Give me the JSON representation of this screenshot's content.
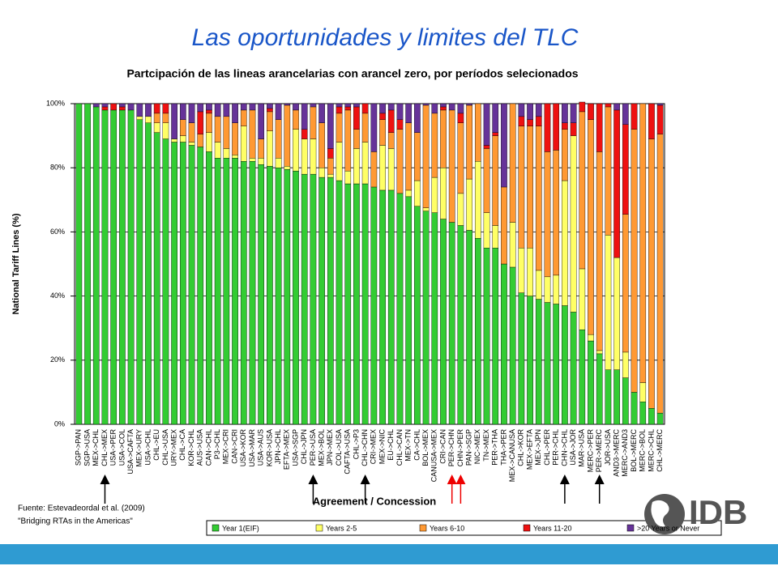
{
  "header": {
    "title": "Las oportunidades y limites del TLC"
  },
  "chart_data": {
    "type": "stacked_bar",
    "title": "Partcipación de las lineas arancelarias con arancel zero, por períodos selecionados",
    "x_label": "Agreement / Concession",
    "y_label": "National Tariff Lines (%)",
    "categories": [
      "SGP->PAN",
      "SGP->USA",
      "MEX->CHL",
      "CHL->MEX",
      "USA->PER",
      "USA->COL",
      "USA->CAFTA",
      "MEX->URY",
      "USA->CHL",
      "CHL->EU",
      "CHL->USA",
      "URY->MEX",
      "CHL->CA",
      "KOR->CHL",
      "AUS->USA",
      "CAN->CHL",
      "P3->CHL",
      "MEX->CRI",
      "CAN->CRI",
      "USA->KOR",
      "USA->MAR",
      "USA->AUS",
      "KOR->USA",
      "JPN->CHL",
      "EFTA->MEX",
      "USA->SGP",
      "CHL->JPN",
      "PER->USA",
      "MEX->BOL",
      "JPN->MEX",
      "COL->USA",
      "CAFTA->USA",
      "CHL->P3",
      "CHL->CHN",
      "CRI->MEX",
      "MEX->NIC",
      "EU->CHL",
      "CHL->CAN",
      "MEX->TN",
      "CA->CHL",
      "BOL->MEX",
      "CANUSA->MEX",
      "CRI->CAN",
      "PER->CHN",
      "CHN->PER",
      "PAN->SGP",
      "NIC->MEX",
      "TN->MEX",
      "PER->THA",
      "THA->PER",
      "MEX->CANUSA",
      "CHL->KOR",
      "MEX->EFTA",
      "MEX->JPN",
      "CHL->PER",
      "PER->CHL",
      "CHN->CHL",
      "USA->JOR",
      "MAR->USA",
      "MERC->PER",
      "PER->MERC",
      "JOR->USA",
      "AND3->MERC",
      "MERC->AND3",
      "BOL->MERC",
      "MERC->BOL",
      "MERC->CHL",
      "CHL->MERC"
    ],
    "series": [
      {
        "name": "Year 1(EIF)",
        "color": "#33cc33",
        "values": [
          100,
          100,
          99,
          98,
          98,
          98,
          98,
          95,
          94,
          91,
          89,
          88,
          88,
          87,
          86.5,
          85,
          83,
          83,
          83,
          82,
          82,
          81,
          80.5,
          80,
          79.5,
          79,
          78,
          78,
          77,
          77,
          76,
          75,
          75,
          75,
          74,
          73,
          73,
          72,
          71,
          68,
          66.5,
          66,
          64,
          63,
          62,
          60.5,
          58,
          55,
          55,
          50,
          49,
          41,
          40,
          39,
          38,
          37.5,
          37,
          35,
          29.5,
          26,
          22,
          17,
          17,
          14.5,
          10,
          7,
          5,
          3.5
        ]
      },
      {
        "name": "Years 2-5",
        "color": "#ffff66",
        "values": [
          0,
          0,
          0,
          0,
          0,
          0,
          0,
          1,
          2,
          3,
          5,
          1,
          2,
          1,
          0,
          6,
          5,
          3,
          1,
          11,
          1,
          2,
          11,
          3,
          1,
          13,
          11,
          11,
          3,
          1,
          12,
          4,
          11,
          13,
          0,
          14,
          13,
          0,
          2,
          8,
          1,
          11,
          16,
          0,
          10,
          16,
          24,
          11,
          7,
          0,
          14,
          14,
          15,
          9,
          8,
          9,
          39,
          55,
          19,
          2,
          1,
          42,
          35,
          8,
          0,
          6,
          0,
          0
        ]
      },
      {
        "name": "Years 6-10",
        "color": "#ff9933",
        "values": [
          0,
          0,
          0,
          0,
          0,
          0,
          0,
          0,
          0,
          3,
          3,
          0,
          5,
          6,
          4,
          6,
          8,
          10,
          10,
          5,
          15,
          6,
          6,
          12,
          19,
          6,
          0,
          10,
          14,
          5,
          9,
          19,
          6,
          9,
          11,
          8,
          5,
          20,
          21,
          15,
          32,
          20,
          18,
          35,
          22,
          23,
          18,
          20,
          28,
          24,
          37,
          38,
          38,
          45,
          39,
          39,
          16,
          0,
          49,
          67,
          62,
          40,
          0,
          43,
          82,
          87,
          84,
          87
        ]
      },
      {
        "name": "Years 11-20",
        "color": "#ee1111",
        "values": [
          0,
          0,
          0,
          1,
          2,
          1,
          0,
          0,
          0,
          3,
          3,
          0,
          0,
          0,
          7,
          1,
          0,
          0,
          0,
          0,
          0,
          0,
          1,
          0,
          0,
          0,
          3,
          0,
          0,
          3,
          2,
          1,
          7,
          3,
          0,
          2,
          7,
          3,
          0,
          0,
          0,
          0,
          1,
          0,
          3,
          0,
          0,
          1,
          1,
          0,
          0,
          3,
          2,
          3,
          15,
          14.5,
          2,
          4,
          3,
          5,
          15,
          1,
          46,
          28,
          8,
          0,
          11,
          9
        ]
      },
      {
        "name": ">20 Years or Never",
        "color": "#663399",
        "values": [
          0,
          0,
          1,
          1,
          0,
          1,
          2,
          4,
          4,
          0,
          0,
          11,
          5,
          6,
          2.5,
          2,
          4,
          4,
          6,
          2,
          2,
          11,
          1.5,
          5,
          0.5,
          2,
          8,
          1,
          6,
          14,
          1,
          1,
          1,
          0,
          15,
          3,
          2,
          5,
          6,
          9,
          0.5,
          3,
          1,
          2,
          3,
          0.5,
          0,
          13,
          9,
          26,
          0,
          4,
          5,
          4,
          0,
          0,
          6,
          6,
          0,
          0,
          0,
          0,
          2,
          6.5,
          0,
          0,
          0,
          0.5
        ]
      }
    ],
    "ylim": [
      0,
      100
    ],
    "yticks": [
      {
        "value": 0,
        "label": "0%"
      },
      {
        "value": 20,
        "label": "20%"
      },
      {
        "value": 40,
        "label": "40%"
      },
      {
        "value": 60,
        "label": "60%"
      },
      {
        "value": 80,
        "label": "80%"
      },
      {
        "value": 100,
        "label": "100%"
      }
    ],
    "grid": true,
    "legend": "bottom"
  },
  "source": {
    "line1": "Fuente: Estevadeordal et al. (2009)",
    "line2": "\"Bridging RTAs in the Americas\""
  },
  "logo": {
    "text": "IDB"
  }
}
